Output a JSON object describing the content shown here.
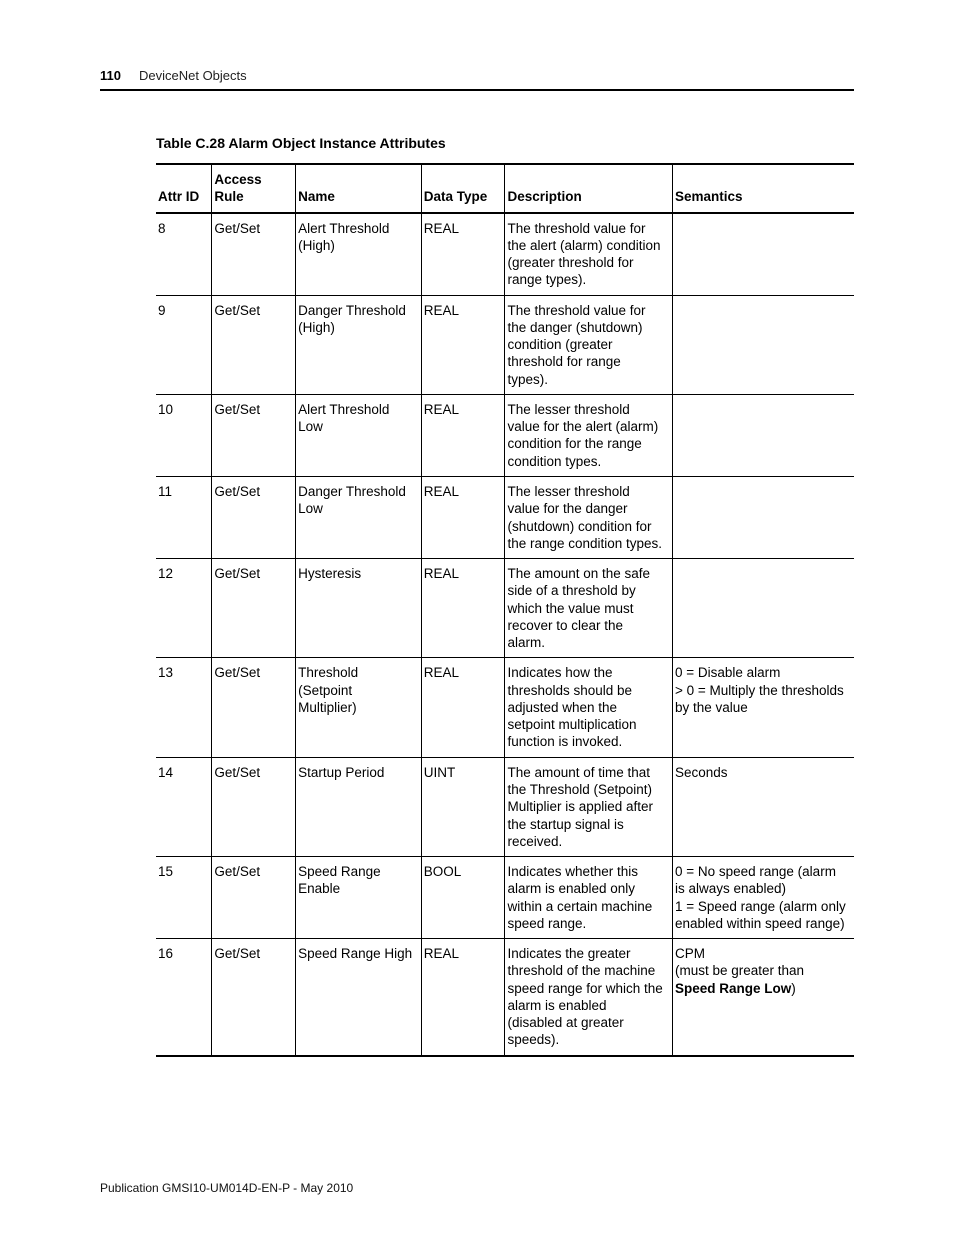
{
  "page": {
    "number": "110",
    "section": "DeviceNet Objects",
    "footer": "Publication GMSI10-UM014D-EN-P - May 2010"
  },
  "table": {
    "title": "Table C.28 Alarm Object Instance Attributes",
    "columns": {
      "attr_id": "Attr ID",
      "access_rule": "Access Rule",
      "name": "Name",
      "data_type": "Data Type",
      "description": "Description",
      "semantics": "Semantics"
    },
    "rows": [
      {
        "attr_id": "8",
        "access": "Get/Set",
        "name": "Alert Threshold (High)",
        "dtype": "REAL",
        "desc": "The threshold value for the alert (alarm) condition (greater threshold for range types).",
        "sem": ""
      },
      {
        "attr_id": "9",
        "access": "Get/Set",
        "name": "Danger Threshold (High)",
        "dtype": "REAL",
        "desc": "The threshold value for the danger (shutdown) condition (greater threshold for range types).",
        "sem": ""
      },
      {
        "attr_id": "10",
        "access": "Get/Set",
        "name": "Alert Threshold Low",
        "dtype": "REAL",
        "desc": "The lesser threshold value for the alert (alarm) condition for the range condition types.",
        "sem": ""
      },
      {
        "attr_id": "11",
        "access": "Get/Set",
        "name": "Danger Threshold Low",
        "dtype": "REAL",
        "desc": "The lesser threshold value for the danger (shutdown) condition for the range condition types.",
        "sem": ""
      },
      {
        "attr_id": "12",
        "access": "Get/Set",
        "name": "Hysteresis",
        "dtype": "REAL",
        "desc": "The amount on the safe side of a threshold by which the value must recover to clear the alarm.",
        "sem": ""
      },
      {
        "attr_id": "13",
        "access": "Get/Set",
        "name": "Threshold (Setpoint Multiplier)",
        "dtype": "REAL",
        "desc": "Indicates how the thresholds should be adjusted when the setpoint multiplication function is invoked.",
        "sem": "0 = Disable alarm\n> 0 = Multiply the thresholds by the value"
      },
      {
        "attr_id": "14",
        "access": "Get/Set",
        "name": "Startup Period",
        "dtype": "UINT",
        "desc": "The amount of time that the Threshold (Setpoint) Multiplier is applied after the startup signal is received.",
        "sem": "Seconds"
      },
      {
        "attr_id": "15",
        "access": "Get/Set",
        "name": "Speed Range Enable",
        "dtype": "BOOL",
        "desc": "Indicates whether this alarm is enabled only within a certain machine speed range.",
        "sem": "0 = No speed range (alarm is always enabled)\n1 = Speed range (alarm only enabled within speed range)"
      },
      {
        "attr_id": "16",
        "access": "Get/Set",
        "name": "Speed Range High",
        "dtype": "REAL",
        "desc": "Indicates the greater threshold of the machine speed range for which the alarm is enabled (disabled at greater speeds).",
        "sem_html": "CPM<br>(must be greater than <b>Speed Range Low</b>)"
      }
    ]
  }
}
